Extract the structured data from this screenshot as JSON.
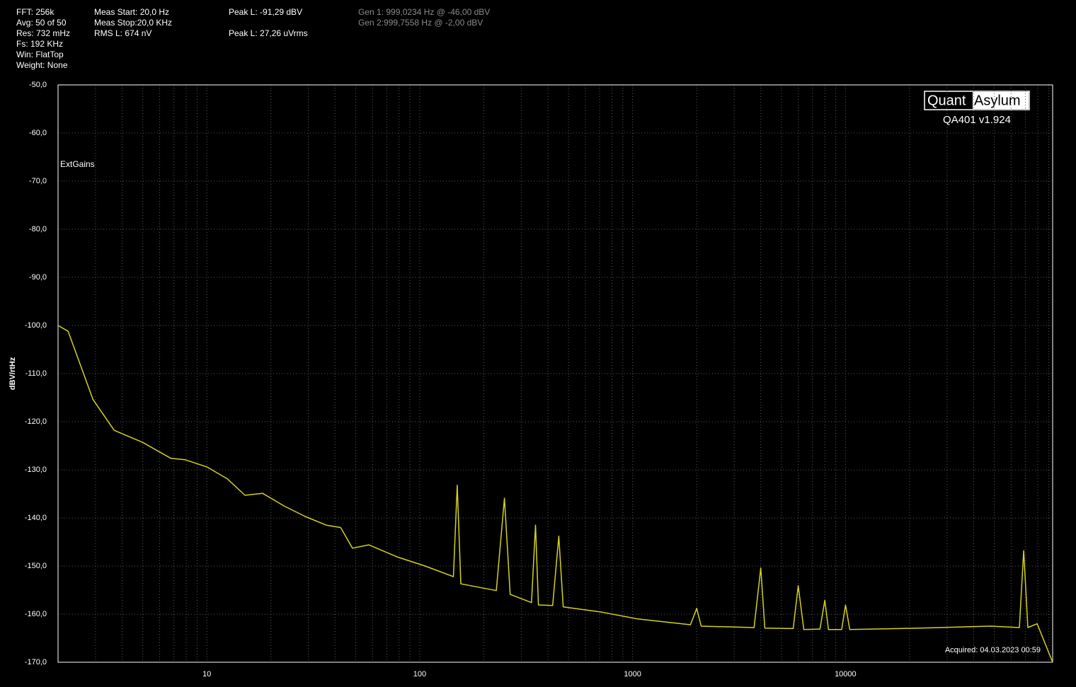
{
  "readouts": [
    [
      "FFT: 256k",
      "Avg: 50 of 50",
      "Res: 732 mHz",
      "Fs: 192 KHz",
      "Win: FlatTop",
      "Weight: None"
    ],
    [
      "Meas Start: 20,0 Hz",
      "Meas Stop:20,0 KHz",
      "RMS L: 674 nV"
    ],
    [
      "Peak L: -91,29 dBV",
      null,
      "Peak L: 27,26 uVrms"
    ],
    [
      "Gen 1: 999,0234 Hz @ -46,00  dBV",
      "Gen 2:999,7558 Hz @ -2,00  dBV"
    ]
  ],
  "logo": {
    "left": "Quant",
    "right": "Asylum",
    "version": "QA401 v1.924"
  },
  "acquired": "Acquired: 04.03.2023 00:59",
  "chart_data": {
    "type": "line",
    "y_label": "dBV/rtHz",
    "annotation": "ExtGains",
    "x_log": true,
    "grid": true,
    "xlim": [
      2,
      94000
    ],
    "xticks": [
      10,
      100,
      1000,
      10000
    ],
    "xgrid": [
      3,
      4,
      5,
      6,
      7,
      8,
      9,
      20,
      30,
      40,
      50,
      60,
      70,
      80,
      90,
      200,
      300,
      400,
      500,
      600,
      700,
      800,
      900,
      2000,
      3000,
      4000,
      5000,
      6000,
      7000,
      8000,
      9000,
      20000,
      30000,
      40000,
      50000,
      60000,
      70000,
      80000,
      90000
    ],
    "ylim": [
      -170,
      -50
    ],
    "yticks": [
      {
        "value": -170,
        "label": "-170,0"
      },
      {
        "value": -160,
        "label": "-160,0"
      },
      {
        "value": -150,
        "label": "-150,0"
      },
      {
        "value": -140,
        "label": "-140,0"
      },
      {
        "value": -130,
        "label": "-130,0"
      },
      {
        "value": -120,
        "label": "-120,0"
      },
      {
        "value": -110,
        "label": "-110,0"
      },
      {
        "value": -100,
        "label": "-100,0"
      },
      {
        "value": -90,
        "label": "-90,0"
      },
      {
        "value": -80,
        "label": "-80,0"
      },
      {
        "value": -70,
        "label": "-70,0"
      },
      {
        "value": -60,
        "label": "-60,0"
      },
      {
        "value": -50,
        "label": "-50,0"
      }
    ],
    "x": [
      2,
      2.23,
      2.92,
      3.67,
      4.99,
      6.77,
      7.89,
      10,
      12.5,
      15.1,
      18.3,
      23,
      29,
      36.4,
      42.5,
      48.3,
      57.6,
      78.3,
      106,
      144,
      150,
      156,
      229,
      250,
      266,
      335,
      350,
      361,
      421,
      450,
      472,
      720,
      1055,
      1870,
      2000,
      2100,
      3720,
      4000,
      4180,
      5680,
      6000,
      6370,
      7590,
      8000,
      8320,
      9600,
      10000,
      10470,
      22500,
      48300,
      65600,
      68700,
      71900,
      79500,
      94000
    ],
    "series": [
      {
        "color": "#d2d21e",
        "values": [
          -100,
          -101.2,
          -115.4,
          -121.8,
          -124.3,
          -127.6,
          -127.9,
          -129.4,
          -131.9,
          -135.3,
          -134.9,
          -137.5,
          -139.7,
          -141.5,
          -142,
          -146.3,
          -145.6,
          -148.1,
          -150,
          -152.2,
          -133.2,
          -153.7,
          -155.1,
          -135.9,
          -155.9,
          -157.6,
          -141.5,
          -158.1,
          -158.2,
          -143.8,
          -158.5,
          -159.6,
          -161,
          -162.2,
          -158.8,
          -162.5,
          -162.8,
          -150.4,
          -162.9,
          -163,
          -154.1,
          -163.2,
          -163.1,
          -157.1,
          -163.2,
          -163.2,
          -158.1,
          -163.2,
          -162.9,
          -162.5,
          -162.8,
          -146.8,
          -162.8,
          -162,
          -170
        ]
      }
    ]
  }
}
